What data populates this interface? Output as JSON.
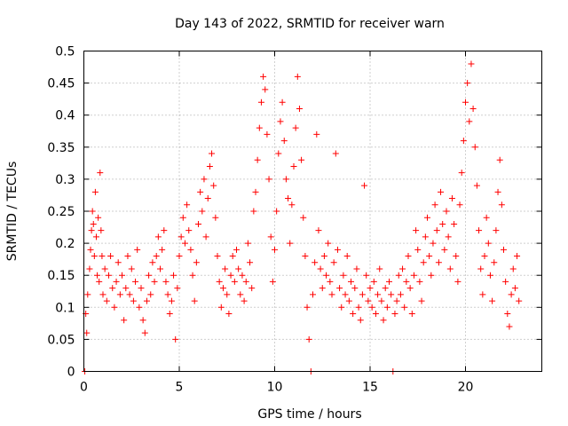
{
  "chart_data": {
    "type": "scatter",
    "title": "Day 143 of 2022, SRMTID for receiver warn",
    "xlabel": "GPS time / hours",
    "ylabel": "SRMTID / TECUs",
    "xlim": [
      0,
      24
    ],
    "ylim": [
      0,
      0.5
    ],
    "xticks": [
      0,
      5,
      10,
      15,
      20
    ],
    "xtick_labels": [
      "0",
      "5",
      "10",
      "15",
      "20"
    ],
    "yticks": [
      0,
      0.05,
      0.1,
      0.15,
      0.2,
      0.25,
      0.3,
      0.35,
      0.4,
      0.45,
      0.5
    ],
    "ytick_labels": [
      "0",
      "0.05",
      "0.1",
      "0.15",
      "0.2",
      "0.25",
      "0.3",
      "0.35",
      "0.4",
      "0.45",
      "0.5"
    ],
    "grid": true,
    "marker": "+",
    "color": "#ff0000",
    "series": [
      {
        "name": "SRMTID",
        "points": [
          [
            0.05,
            0.0
          ],
          [
            0.1,
            0.09
          ],
          [
            0.15,
            0.06
          ],
          [
            0.2,
            0.12
          ],
          [
            0.3,
            0.16
          ],
          [
            0.35,
            0.19
          ],
          [
            0.4,
            0.22
          ],
          [
            0.45,
            0.25
          ],
          [
            0.5,
            0.23
          ],
          [
            0.55,
            0.18
          ],
          [
            0.6,
            0.28
          ],
          [
            0.65,
            0.21
          ],
          [
            0.7,
            0.15
          ],
          [
            0.75,
            0.24
          ],
          [
            0.8,
            0.14
          ],
          [
            0.85,
            0.31
          ],
          [
            0.9,
            0.22
          ],
          [
            0.95,
            0.18
          ],
          [
            1.0,
            0.12
          ],
          [
            1.1,
            0.16
          ],
          [
            1.2,
            0.11
          ],
          [
            1.3,
            0.15
          ],
          [
            1.4,
            0.18
          ],
          [
            1.5,
            0.13
          ],
          [
            1.6,
            0.1
          ],
          [
            1.7,
            0.14
          ],
          [
            1.8,
            0.17
          ],
          [
            1.9,
            0.12
          ],
          [
            2.0,
            0.15
          ],
          [
            2.1,
            0.08
          ],
          [
            2.2,
            0.13
          ],
          [
            2.3,
            0.18
          ],
          [
            2.4,
            0.12
          ],
          [
            2.5,
            0.16
          ],
          [
            2.6,
            0.11
          ],
          [
            2.7,
            0.14
          ],
          [
            2.8,
            0.19
          ],
          [
            2.9,
            0.1
          ],
          [
            3.0,
            0.13
          ],
          [
            3.1,
            0.08
          ],
          [
            3.2,
            0.06
          ],
          [
            3.3,
            0.11
          ],
          [
            3.4,
            0.15
          ],
          [
            3.5,
            0.12
          ],
          [
            3.6,
            0.17
          ],
          [
            3.7,
            0.14
          ],
          [
            3.8,
            0.18
          ],
          [
            3.9,
            0.21
          ],
          [
            4.0,
            0.16
          ],
          [
            4.1,
            0.19
          ],
          [
            4.2,
            0.22
          ],
          [
            4.3,
            0.14
          ],
          [
            4.4,
            0.12
          ],
          [
            4.5,
            0.09
          ],
          [
            4.6,
            0.11
          ],
          [
            4.7,
            0.15
          ],
          [
            4.8,
            0.05
          ],
          [
            4.9,
            0.13
          ],
          [
            5.0,
            0.18
          ],
          [
            5.1,
            0.21
          ],
          [
            5.2,
            0.24
          ],
          [
            5.3,
            0.2
          ],
          [
            5.4,
            0.26
          ],
          [
            5.5,
            0.22
          ],
          [
            5.6,
            0.19
          ],
          [
            5.7,
            0.15
          ],
          [
            5.8,
            0.11
          ],
          [
            5.9,
            0.17
          ],
          [
            6.0,
            0.23
          ],
          [
            6.1,
            0.28
          ],
          [
            6.2,
            0.25
          ],
          [
            6.3,
            0.3
          ],
          [
            6.4,
            0.21
          ],
          [
            6.5,
            0.27
          ],
          [
            6.6,
            0.32
          ],
          [
            6.7,
            0.34
          ],
          [
            6.8,
            0.29
          ],
          [
            6.9,
            0.24
          ],
          [
            7.0,
            0.18
          ],
          [
            7.1,
            0.14
          ],
          [
            7.2,
            0.1
          ],
          [
            7.3,
            0.13
          ],
          [
            7.4,
            0.16
          ],
          [
            7.5,
            0.12
          ],
          [
            7.6,
            0.09
          ],
          [
            7.7,
            0.15
          ],
          [
            7.8,
            0.18
          ],
          [
            7.9,
            0.14
          ],
          [
            8.0,
            0.19
          ],
          [
            8.1,
            0.16
          ],
          [
            8.2,
            0.12
          ],
          [
            8.3,
            0.15
          ],
          [
            8.4,
            0.11
          ],
          [
            8.5,
            0.14
          ],
          [
            8.6,
            0.2
          ],
          [
            8.7,
            0.17
          ],
          [
            8.8,
            0.13
          ],
          [
            8.9,
            0.25
          ],
          [
            9.0,
            0.28
          ],
          [
            9.1,
            0.33
          ],
          [
            9.2,
            0.38
          ],
          [
            9.3,
            0.42
          ],
          [
            9.4,
            0.46
          ],
          [
            9.5,
            0.44
          ],
          [
            9.6,
            0.37
          ],
          [
            9.7,
            0.3
          ],
          [
            9.8,
            0.21
          ],
          [
            9.9,
            0.14
          ],
          [
            10.0,
            0.19
          ],
          [
            10.1,
            0.25
          ],
          [
            10.2,
            0.34
          ],
          [
            10.3,
            0.39
          ],
          [
            10.4,
            0.42
          ],
          [
            10.5,
            0.36
          ],
          [
            10.6,
            0.3
          ],
          [
            10.7,
            0.27
          ],
          [
            10.8,
            0.2
          ],
          [
            10.9,
            0.26
          ],
          [
            11.0,
            0.32
          ],
          [
            11.1,
            0.38
          ],
          [
            11.2,
            0.46
          ],
          [
            11.3,
            0.41
          ],
          [
            11.4,
            0.33
          ],
          [
            11.5,
            0.24
          ],
          [
            11.6,
            0.18
          ],
          [
            11.7,
            0.1
          ],
          [
            11.8,
            0.05
          ],
          [
            11.9,
            0.0
          ],
          [
            12.0,
            0.12
          ],
          [
            12.1,
            0.17
          ],
          [
            12.2,
            0.37
          ],
          [
            12.3,
            0.22
          ],
          [
            12.4,
            0.16
          ],
          [
            12.5,
            0.13
          ],
          [
            12.6,
            0.18
          ],
          [
            12.7,
            0.15
          ],
          [
            12.8,
            0.2
          ],
          [
            12.9,
            0.14
          ],
          [
            13.0,
            0.12
          ],
          [
            13.1,
            0.17
          ],
          [
            13.2,
            0.34
          ],
          [
            13.3,
            0.19
          ],
          [
            13.4,
            0.13
          ],
          [
            13.5,
            0.1
          ],
          [
            13.6,
            0.15
          ],
          [
            13.7,
            0.12
          ],
          [
            13.8,
            0.18
          ],
          [
            13.9,
            0.11
          ],
          [
            14.0,
            0.14
          ],
          [
            14.1,
            0.09
          ],
          [
            14.2,
            0.13
          ],
          [
            14.3,
            0.16
          ],
          [
            14.4,
            0.1
          ],
          [
            14.5,
            0.08
          ],
          [
            14.6,
            0.12
          ],
          [
            14.7,
            0.29
          ],
          [
            14.8,
            0.15
          ],
          [
            14.9,
            0.11
          ],
          [
            15.0,
            0.13
          ],
          [
            15.1,
            0.1
          ],
          [
            15.2,
            0.14
          ],
          [
            15.3,
            0.09
          ],
          [
            15.4,
            0.12
          ],
          [
            15.5,
            0.16
          ],
          [
            15.6,
            0.11
          ],
          [
            15.7,
            0.08
          ],
          [
            15.8,
            0.13
          ],
          [
            15.9,
            0.1
          ],
          [
            16.0,
            0.14
          ],
          [
            16.1,
            0.12
          ],
          [
            16.2,
            0.0
          ],
          [
            16.3,
            0.09
          ],
          [
            16.4,
            0.11
          ],
          [
            16.5,
            0.15
          ],
          [
            16.6,
            0.12
          ],
          [
            16.7,
            0.16
          ],
          [
            16.8,
            0.1
          ],
          [
            16.9,
            0.14
          ],
          [
            17.0,
            0.18
          ],
          [
            17.1,
            0.13
          ],
          [
            17.2,
            0.09
          ],
          [
            17.3,
            0.15
          ],
          [
            17.4,
            0.22
          ],
          [
            17.5,
            0.19
          ],
          [
            17.6,
            0.14
          ],
          [
            17.7,
            0.11
          ],
          [
            17.8,
            0.17
          ],
          [
            17.9,
            0.21
          ],
          [
            18.0,
            0.24
          ],
          [
            18.1,
            0.18
          ],
          [
            18.2,
            0.15
          ],
          [
            18.3,
            0.2
          ],
          [
            18.4,
            0.26
          ],
          [
            18.5,
            0.22
          ],
          [
            18.6,
            0.17
          ],
          [
            18.7,
            0.28
          ],
          [
            18.8,
            0.23
          ],
          [
            18.9,
            0.19
          ],
          [
            19.0,
            0.25
          ],
          [
            19.1,
            0.21
          ],
          [
            19.2,
            0.16
          ],
          [
            19.3,
            0.27
          ],
          [
            19.4,
            0.23
          ],
          [
            19.5,
            0.18
          ],
          [
            19.6,
            0.14
          ],
          [
            19.7,
            0.26
          ],
          [
            19.8,
            0.31
          ],
          [
            19.9,
            0.36
          ],
          [
            20.0,
            0.42
          ],
          [
            20.1,
            0.45
          ],
          [
            20.2,
            0.39
          ],
          [
            20.3,
            0.48
          ],
          [
            20.4,
            0.41
          ],
          [
            20.5,
            0.35
          ],
          [
            20.6,
            0.29
          ],
          [
            20.7,
            0.22
          ],
          [
            20.8,
            0.16
          ],
          [
            20.9,
            0.12
          ],
          [
            21.0,
            0.18
          ],
          [
            21.1,
            0.24
          ],
          [
            21.2,
            0.2
          ],
          [
            21.3,
            0.15
          ],
          [
            21.4,
            0.11
          ],
          [
            21.5,
            0.17
          ],
          [
            21.6,
            0.22
          ],
          [
            21.7,
            0.28
          ],
          [
            21.8,
            0.33
          ],
          [
            21.9,
            0.26
          ],
          [
            22.0,
            0.19
          ],
          [
            22.1,
            0.14
          ],
          [
            22.2,
            0.09
          ],
          [
            22.3,
            0.07
          ],
          [
            22.4,
            0.12
          ],
          [
            22.5,
            0.16
          ],
          [
            22.6,
            0.13
          ],
          [
            22.7,
            0.18
          ],
          [
            22.8,
            0.11
          ]
        ]
      }
    ]
  }
}
